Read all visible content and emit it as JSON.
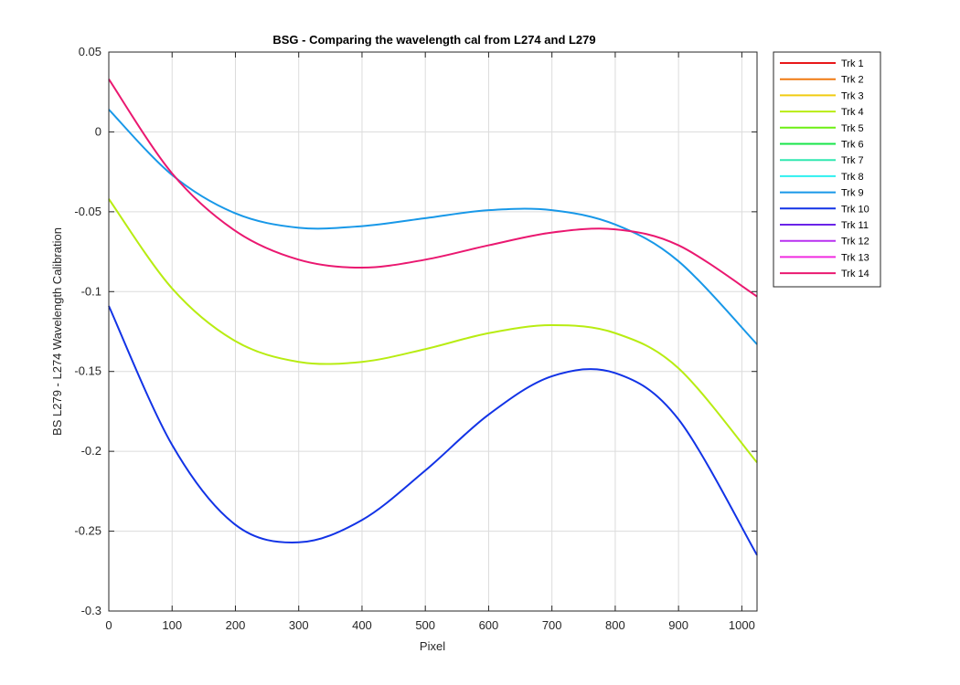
{
  "chart_data": {
    "type": "line",
    "title": "BSG - Comparing the wavelength cal from L274 and L279",
    "xlabel": "Pixel",
    "ylabel": "BS L279 - L274 Wavelength Calibration",
    "xlim": [
      0,
      1024
    ],
    "ylim": [
      -0.3,
      0.05
    ],
    "xticks": [
      0,
      100,
      200,
      300,
      400,
      500,
      600,
      700,
      800,
      900,
      1000
    ],
    "yticks": [
      -0.3,
      -0.25,
      -0.2,
      -0.15,
      -0.1,
      -0.05,
      0,
      0.05
    ],
    "xtick_labels": [
      "0",
      "100",
      "200",
      "300",
      "400",
      "500",
      "600",
      "700",
      "800",
      "900",
      "1000"
    ],
    "ytick_labels": [
      "-0.3",
      "-0.25",
      "-0.2",
      "-0.15",
      "-0.1",
      "-0.05",
      "0",
      "0.05"
    ],
    "grid": true,
    "legend_position": "outside-top-right",
    "series": [
      {
        "name": "Trk 1",
        "color": "#e8171a",
        "x": [],
        "y": []
      },
      {
        "name": "Trk 2",
        "color": "#f07a12",
        "x": [],
        "y": []
      },
      {
        "name": "Trk 3",
        "color": "#f0cc12",
        "x": [],
        "y": []
      },
      {
        "name": "Trk 4",
        "color": "#b8ec12",
        "x": [
          0,
          100,
          200,
          300,
          400,
          500,
          600,
          700,
          800,
          900,
          1024
        ],
        "y": [
          -0.042,
          -0.098,
          -0.131,
          -0.144,
          -0.144,
          -0.136,
          -0.126,
          -0.121,
          -0.126,
          -0.148,
          -0.207
        ]
      },
      {
        "name": "Trk 5",
        "color": "#6cef12",
        "x": [],
        "y": []
      },
      {
        "name": "Trk 6",
        "color": "#17e548",
        "x": [],
        "y": []
      },
      {
        "name": "Trk 7",
        "color": "#30e8b0",
        "x": [],
        "y": []
      },
      {
        "name": "Trk 8",
        "color": "#2ef0f0",
        "x": [],
        "y": []
      },
      {
        "name": "Trk 9",
        "color": "#1898e8",
        "x": [
          0,
          100,
          200,
          300,
          400,
          500,
          600,
          700,
          800,
          900,
          1024
        ],
        "y": [
          0.014,
          -0.027,
          -0.051,
          -0.06,
          -0.059,
          -0.054,
          -0.049,
          -0.049,
          -0.058,
          -0.081,
          -0.133
        ]
      },
      {
        "name": "Trk 10",
        "color": "#1233e6",
        "x": [
          0,
          100,
          200,
          300,
          400,
          500,
          600,
          700,
          800,
          900,
          1024
        ],
        "y": [
          -0.109,
          -0.196,
          -0.246,
          -0.257,
          -0.243,
          -0.212,
          -0.177,
          -0.153,
          -0.151,
          -0.18,
          -0.265
        ]
      },
      {
        "name": "Trk 11",
        "color": "#6a24e8",
        "x": [],
        "y": []
      },
      {
        "name": "Trk 12",
        "color": "#b830f0",
        "x": [],
        "y": []
      },
      {
        "name": "Trk 13",
        "color": "#f02ce0",
        "x": [],
        "y": []
      },
      {
        "name": "Trk 14",
        "color": "#ea1870",
        "x": [
          0,
          100,
          200,
          300,
          400,
          500,
          600,
          700,
          800,
          900,
          1024
        ],
        "y": [
          0.033,
          -0.026,
          -0.062,
          -0.08,
          -0.085,
          -0.08,
          -0.071,
          -0.063,
          -0.061,
          -0.071,
          -0.103
        ]
      }
    ]
  }
}
